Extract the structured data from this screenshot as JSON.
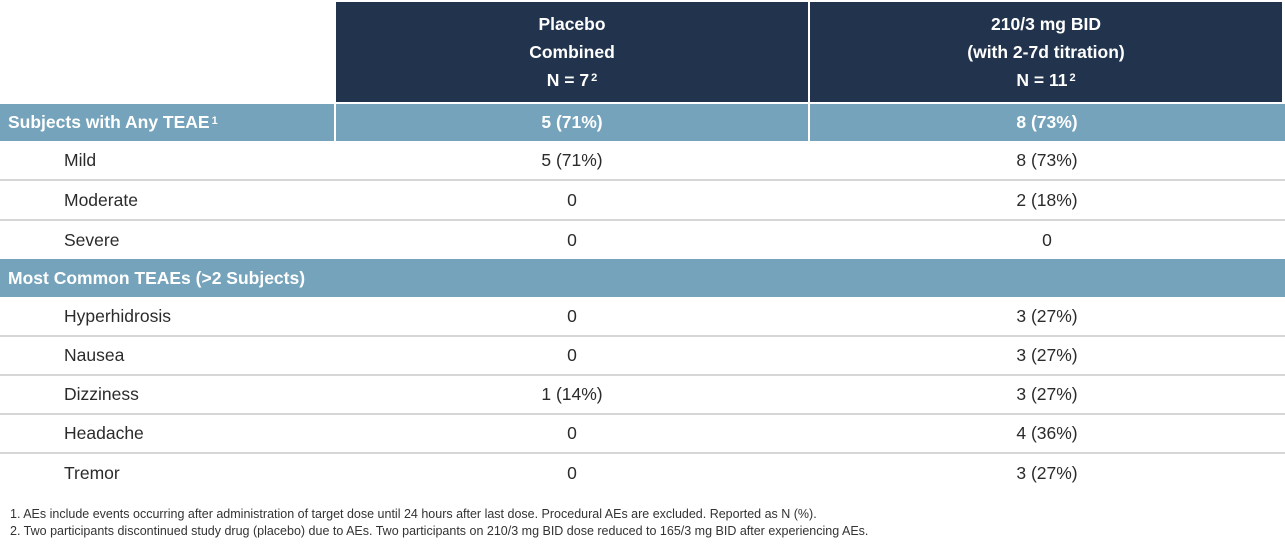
{
  "header": {
    "col1": [
      "Placebo",
      "Combined",
      "N = 7",
      "2"
    ],
    "col2": [
      "210/3 mg BID",
      "(with 2-7d titration)",
      "N = 11",
      "2"
    ]
  },
  "sections": [
    {
      "title": "Subjects with Any TEAE",
      "title_sup": "1",
      "placebo": "5 (71%)",
      "dose": "8 (73%)",
      "rows": [
        {
          "label": "Mild",
          "placebo": "5 (71%)",
          "dose": "8 (73%)"
        },
        {
          "label": "Moderate",
          "placebo": "0",
          "dose": "2 (18%)"
        },
        {
          "label": "Severe",
          "placebo": "0",
          "dose": "0"
        }
      ]
    },
    {
      "title": "Most Common TEAEs (>2 Subjects)",
      "title_sup": "",
      "placebo": "",
      "dose": "",
      "rows": [
        {
          "label": "Hyperhidrosis",
          "placebo": "0",
          "dose": "3 (27%)"
        },
        {
          "label": "Nausea",
          "placebo": "0",
          "dose": "3 (27%)"
        },
        {
          "label": "Dizziness",
          "placebo": "1 (14%)",
          "dose": "3 (27%)"
        },
        {
          "label": "Headache",
          "placebo": "0",
          "dose": "4 (36%)"
        },
        {
          "label": "Tremor",
          "placebo": "0",
          "dose": "3 (27%)"
        }
      ]
    }
  ],
  "footnotes": [
    "1. AEs include events occurring after administration of target dose until 24 hours after last dose. Procedural AEs are excluded. Reported as N (%).",
    "2. Two participants discontinued study drug (placebo) due to AEs. Two participants on 210/3 mg BID dose reduced to 165/3 mg BID after experiencing AEs."
  ],
  "colors": {
    "header_bg": "#22344d",
    "section_bg": "#74a3bb",
    "row_divider": "#d6d6d6"
  }
}
